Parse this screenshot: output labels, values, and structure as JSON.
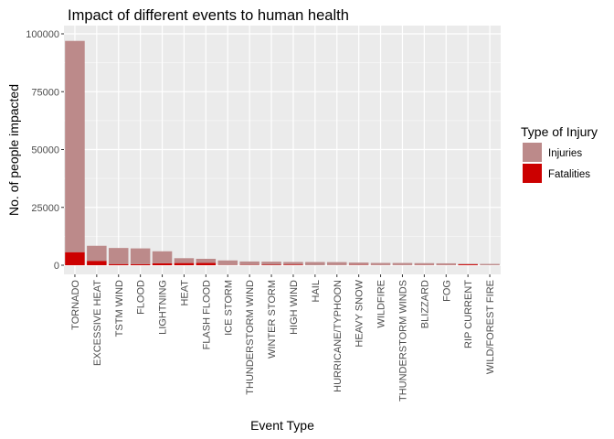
{
  "chart_data": {
    "type": "bar",
    "stacked": true,
    "title": "Impact of different events to human health",
    "xlabel": "Event Type",
    "ylabel": "No. of people impacted",
    "ylim": [
      0,
      100000
    ],
    "yticks": [
      0,
      25000,
      50000,
      75000,
      100000
    ],
    "ytick_labels": [
      "0",
      "25000",
      "50000",
      "75000",
      "100000"
    ],
    "grid": true,
    "categories": [
      "TORNADO",
      "EXCESSIVE HEAT",
      "TSTM WIND",
      "FLOOD",
      "LIGHTNING",
      "HEAT",
      "FLASH FLOOD",
      "ICE STORM",
      "THUNDERSTORM WIND",
      "WINTER STORM",
      "HIGH WIND",
      "HAIL",
      "HURRICANE/TYPHOON",
      "HEAVY SNOW",
      "WILDFIRE",
      "THUNDERSTORM WINDS",
      "BLIZZARD",
      "FOG",
      "RIP CURRENT",
      "WILD/FOREST FIRE"
    ],
    "series": [
      {
        "name": "Injuries",
        "color": "#bc8a8a",
        "values": [
          91300,
          6500,
          6950,
          6800,
          5200,
          2100,
          1800,
          1975,
          1490,
          1320,
          1140,
          1360,
          1275,
          1020,
          910,
          910,
          805,
          735,
          230,
          545
        ]
      },
      {
        "name": "Fatalities",
        "color": "#cc0000",
        "values": [
          5650,
          1900,
          500,
          470,
          820,
          940,
          980,
          90,
          130,
          210,
          250,
          15,
          65,
          130,
          75,
          65,
          100,
          80,
          370,
          15
        ]
      }
    ],
    "legend": {
      "title": "Type of Injury",
      "position": "right",
      "entries": [
        "Injuries",
        "Fatalities"
      ]
    }
  }
}
